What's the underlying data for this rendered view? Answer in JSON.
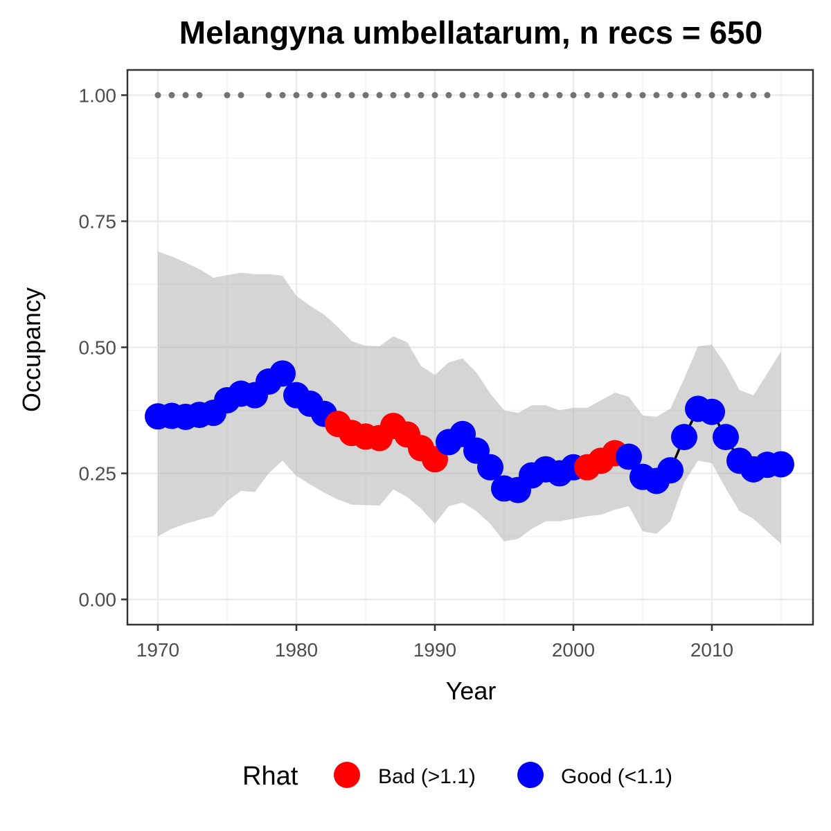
{
  "chart_data": {
    "type": "line",
    "title": "Melangyna umbellatarum, n recs = 650",
    "xlabel": "Year",
    "ylabel": "Occupancy",
    "xlim": [
      1967.8,
      2017.3
    ],
    "ylim": [
      -0.05,
      1.05
    ],
    "x_ticks": [
      1970,
      1980,
      1990,
      2000,
      2010
    ],
    "x_tick_labels": [
      "1970",
      "1980",
      "1990",
      "2000",
      "2010"
    ],
    "y_ticks": [
      0,
      0.25,
      0.5,
      0.75,
      1.0
    ],
    "y_tick_labels": [
      "0.00",
      "0.25",
      "0.50",
      "0.75",
      "1.00"
    ],
    "grid": true,
    "legend_position": "bottom",
    "legend": {
      "title": "Rhat",
      "entries": [
        {
          "label": "Bad (>1.1)",
          "color": "#ff0000"
        },
        {
          "label": "Good (<1.1)",
          "color": "#0000ff"
        }
      ]
    },
    "series": [
      {
        "kind": "occupancy_mean",
        "x": [
          1970,
          1971,
          1972,
          1973,
          1974,
          1975,
          1976,
          1977,
          1978,
          1979,
          1980,
          1981,
          1982,
          1983,
          1984,
          1985,
          1986,
          1987,
          1988,
          1989,
          1990,
          1991,
          1992,
          1993,
          1994,
          1995,
          1996,
          1997,
          1998,
          1999,
          2000,
          2001,
          2002,
          2003,
          2004,
          2005,
          2006,
          2007,
          2008,
          2009,
          2010,
          2011,
          2012,
          2013,
          2014,
          2015
        ],
        "y": [
          0.363,
          0.364,
          0.362,
          0.366,
          0.37,
          0.395,
          0.408,
          0.405,
          0.432,
          0.448,
          0.405,
          0.388,
          0.368,
          0.348,
          0.33,
          0.323,
          0.32,
          0.344,
          0.327,
          0.3,
          0.278,
          0.312,
          0.328,
          0.295,
          0.262,
          0.22,
          0.217,
          0.246,
          0.258,
          0.25,
          0.262,
          0.262,
          0.275,
          0.29,
          0.283,
          0.243,
          0.235,
          0.256,
          0.322,
          0.378,
          0.372,
          0.322,
          0.275,
          0.258,
          0.267,
          0.268
        ],
        "rhat": [
          "Good",
          "Good",
          "Good",
          "Good",
          "Good",
          "Good",
          "Good",
          "Good",
          "Good",
          "Good",
          "Good",
          "Good",
          "Good",
          "Bad",
          "Bad",
          "Bad",
          "Bad",
          "Bad",
          "Bad",
          "Bad",
          "Bad",
          "Good",
          "Good",
          "Good",
          "Good",
          "Good",
          "Good",
          "Good",
          "Good",
          "Good",
          "Good",
          "Bad",
          "Bad",
          "Bad",
          "Good",
          "Good",
          "Good",
          "Good",
          "Good",
          "Good",
          "Good",
          "Good",
          "Good",
          "Good",
          "Good",
          "Good"
        ]
      },
      {
        "kind": "credible_interval",
        "x": [
          1970,
          1971,
          1972,
          1973,
          1974,
          1975,
          1976,
          1977,
          1978,
          1979,
          1980,
          1981,
          1982,
          1983,
          1984,
          1985,
          1986,
          1987,
          1988,
          1989,
          1990,
          1991,
          1992,
          1993,
          1994,
          1995,
          1996,
          1997,
          1998,
          1999,
          2000,
          2001,
          2002,
          2003,
          2004,
          2005,
          2006,
          2007,
          2008,
          2009,
          2010,
          2011,
          2012,
          2013,
          2014,
          2015
        ],
        "lower": [
          0.125,
          0.14,
          0.15,
          0.158,
          0.165,
          0.195,
          0.215,
          0.213,
          0.25,
          0.275,
          0.245,
          0.228,
          0.212,
          0.198,
          0.188,
          0.187,
          0.186,
          0.218,
          0.203,
          0.18,
          0.15,
          0.185,
          0.192,
          0.175,
          0.15,
          0.115,
          0.12,
          0.14,
          0.155,
          0.155,
          0.16,
          0.165,
          0.168,
          0.178,
          0.185,
          0.135,
          0.13,
          0.155,
          0.232,
          0.275,
          0.27,
          0.22,
          0.175,
          0.16,
          0.135,
          0.11
        ],
        "upper": [
          0.69,
          0.68,
          0.668,
          0.655,
          0.638,
          0.643,
          0.648,
          0.645,
          0.645,
          0.642,
          0.602,
          0.582,
          0.565,
          0.54,
          0.512,
          0.503,
          0.502,
          0.522,
          0.51,
          0.463,
          0.445,
          0.47,
          0.478,
          0.45,
          0.408,
          0.375,
          0.37,
          0.385,
          0.385,
          0.375,
          0.38,
          0.38,
          0.395,
          0.41,
          0.402,
          0.365,
          0.362,
          0.378,
          0.438,
          0.502,
          0.505,
          0.465,
          0.415,
          0.405,
          0.448,
          0.492
        ]
      },
      {
        "kind": "records",
        "y_value": 1.0,
        "x": [
          1970,
          1971,
          1972,
          1973,
          1975,
          1976,
          1978,
          1979,
          1980,
          1981,
          1982,
          1983,
          1984,
          1985,
          1986,
          1987,
          1988,
          1989,
          1990,
          1991,
          1992,
          1993,
          1994,
          1995,
          1996,
          1997,
          1998,
          1999,
          2000,
          2001,
          2002,
          2003,
          2004,
          2005,
          2006,
          2007,
          2008,
          2009,
          2010,
          2011,
          2012,
          2013,
          2014
        ]
      }
    ]
  }
}
